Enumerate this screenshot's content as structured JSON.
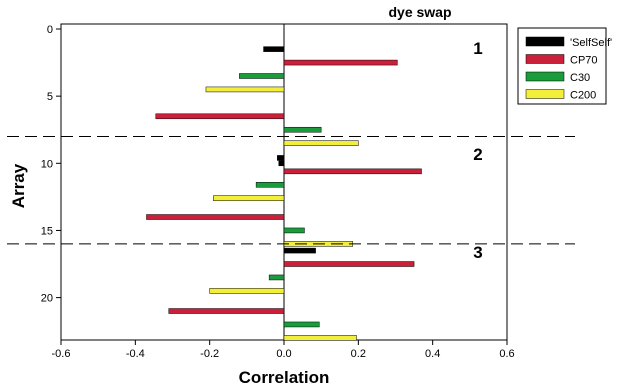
{
  "chart_data": {
    "type": "bar",
    "orientation": "horizontal",
    "title": "dye swap",
    "xlabel": "Correlation",
    "ylabel": "Array",
    "xlim": [
      -0.6,
      0.6
    ],
    "ylim": [
      0,
      23
    ],
    "y_inverted": true,
    "xticks": [
      "-0.6",
      "-0.4",
      "-0.2",
      "0.0",
      "0.2",
      "0.4",
      "0.6"
    ],
    "yticks": [
      "0",
      "5",
      "10",
      "15",
      "20"
    ],
    "grid": false,
    "legend_position": "top-right",
    "series": [
      {
        "name": "'SelfSelf'",
        "color": "#000000",
        "points": [
          {
            "y": 1.5,
            "x": -0.055
          },
          {
            "y": 9.6,
            "x": -0.018
          },
          {
            "y": 10.0,
            "x": -0.014
          },
          {
            "y": 16.5,
            "x": 0.085
          }
        ]
      },
      {
        "name": "CP70",
        "color": "#cc1f3a",
        "points": [
          {
            "y": 2.5,
            "x": 0.305
          },
          {
            "y": 6.5,
            "x": -0.345
          },
          {
            "y": 10.6,
            "x": 0.37
          },
          {
            "y": 14.0,
            "x": -0.37
          },
          {
            "y": 17.5,
            "x": 0.35
          },
          {
            "y": 21.0,
            "x": -0.31
          }
        ]
      },
      {
        "name": "C30",
        "color": "#1a9c3c",
        "points": [
          {
            "y": 3.5,
            "x": -0.12
          },
          {
            "y": 7.5,
            "x": 0.1
          },
          {
            "y": 11.6,
            "x": -0.075
          },
          {
            "y": 15.0,
            "x": 0.055
          },
          {
            "y": 18.5,
            "x": -0.04
          },
          {
            "y": 22.0,
            "x": 0.095
          }
        ]
      },
      {
        "name": "C200",
        "color": "#f2ee3a",
        "points": [
          {
            "y": 4.5,
            "x": -0.21
          },
          {
            "y": 8.5,
            "x": 0.2
          },
          {
            "y": 12.6,
            "x": -0.19
          },
          {
            "y": 16.0,
            "x": 0.185
          },
          {
            "y": 19.5,
            "x": -0.2
          },
          {
            "y": 23.0,
            "x": 0.195
          }
        ]
      }
    ],
    "sections": [
      {
        "label": "1",
        "y_label": 1.4
      },
      {
        "label": "2",
        "y_label": 9.3
      },
      {
        "label": "3",
        "y_label": 16.6
      }
    ],
    "separators": [
      8.0,
      16.0
    ]
  }
}
